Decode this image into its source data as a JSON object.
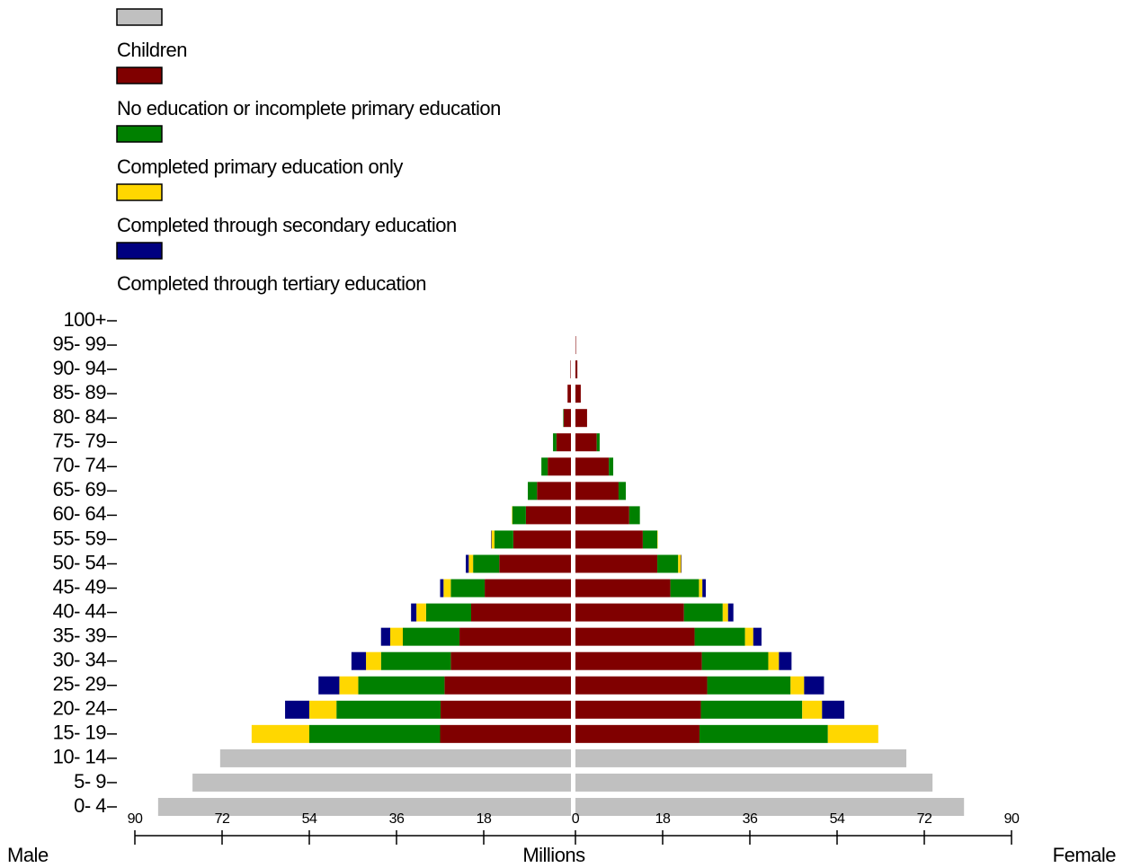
{
  "chart_data": {
    "type": "pyramid",
    "left_label": "Male",
    "right_label": "Female",
    "x_label": "Millions",
    "categories": [
      "0- 4",
      "5- 9",
      "10- 14",
      "15- 19",
      "20- 24",
      "25- 29",
      "30- 34",
      "35- 39",
      "40- 44",
      "45- 49",
      "50- 54",
      "55- 59",
      "60- 64",
      "65- 69",
      "70- 74",
      "75- 79",
      "80- 84",
      "85- 89",
      "90- 94",
      "95- 99",
      "100+"
    ],
    "xlim": [
      0,
      90
    ],
    "xticks": [
      0,
      18,
      36,
      54,
      72,
      90
    ],
    "series": [
      {
        "name": "Children",
        "color": "#c0c0c0",
        "male": [
          85.2,
          78.1,
          72.4,
          0,
          0,
          0,
          0,
          0,
          0,
          0,
          0,
          0,
          0,
          0,
          0,
          0,
          0,
          0,
          0,
          0,
          0
        ],
        "female": [
          80.2,
          73.7,
          68.3,
          0,
          0,
          0,
          0,
          0,
          0,
          0,
          0,
          0,
          0,
          0,
          0,
          0,
          0,
          0,
          0,
          0,
          0
        ]
      },
      {
        "name": "No education or incomplete primary education",
        "color": "#800000",
        "male": [
          0,
          0,
          0,
          27.0,
          26.9,
          26.1,
          24.8,
          23.0,
          20.6,
          17.8,
          14.8,
          11.9,
          9.3,
          7.0,
          4.8,
          3.0,
          1.5,
          0.7,
          0.1,
          0,
          0
        ],
        "female": [
          0,
          0,
          0,
          25.6,
          25.9,
          27.2,
          26.1,
          24.6,
          22.4,
          19.6,
          16.9,
          13.9,
          11.1,
          8.9,
          6.9,
          4.4,
          2.4,
          1.1,
          0.4,
          0.1,
          0
        ]
      },
      {
        "name": "Completed primary education only",
        "color": "#008000",
        "male": [
          0,
          0,
          0,
          27.0,
          21.5,
          17.8,
          14.4,
          11.7,
          9.3,
          7.0,
          5.4,
          3.9,
          2.8,
          1.9,
          1.3,
          0.7,
          0.1,
          0,
          0,
          0,
          0
        ],
        "female": [
          0,
          0,
          0,
          26.5,
          20.9,
          17.2,
          13.7,
          10.4,
          8.0,
          5.9,
          4.3,
          3.0,
          2.2,
          1.5,
          0.9,
          0.6,
          0,
          0,
          0,
          0,
          0
        ]
      },
      {
        "name": "Completed through secondary education",
        "color": "#ffd700",
        "male": [
          0,
          0,
          0,
          11.9,
          5.6,
          3.9,
          3.1,
          2.6,
          2.0,
          1.5,
          0.9,
          0.6,
          0.1,
          0,
          0,
          0,
          0,
          0,
          0,
          0,
          0
        ],
        "female": [
          0,
          0,
          0,
          10.4,
          4.1,
          2.8,
          2.2,
          1.7,
          1.1,
          0.7,
          0.6,
          0.1,
          0,
          0,
          0,
          0,
          0,
          0,
          0,
          0,
          0
        ]
      },
      {
        "name": "Completed through tertiary education",
        "color": "#000080",
        "male": [
          0,
          0,
          0,
          0,
          5.0,
          4.3,
          3.0,
          1.9,
          1.1,
          0.7,
          0.6,
          0.1,
          0,
          0,
          0,
          0,
          0,
          0,
          0,
          0,
          0
        ],
        "female": [
          0,
          0,
          0,
          0,
          4.6,
          4.1,
          2.6,
          1.7,
          1.1,
          0.7,
          0.1,
          0,
          0,
          0,
          0,
          0,
          0,
          0,
          0,
          0,
          0
        ]
      }
    ]
  }
}
